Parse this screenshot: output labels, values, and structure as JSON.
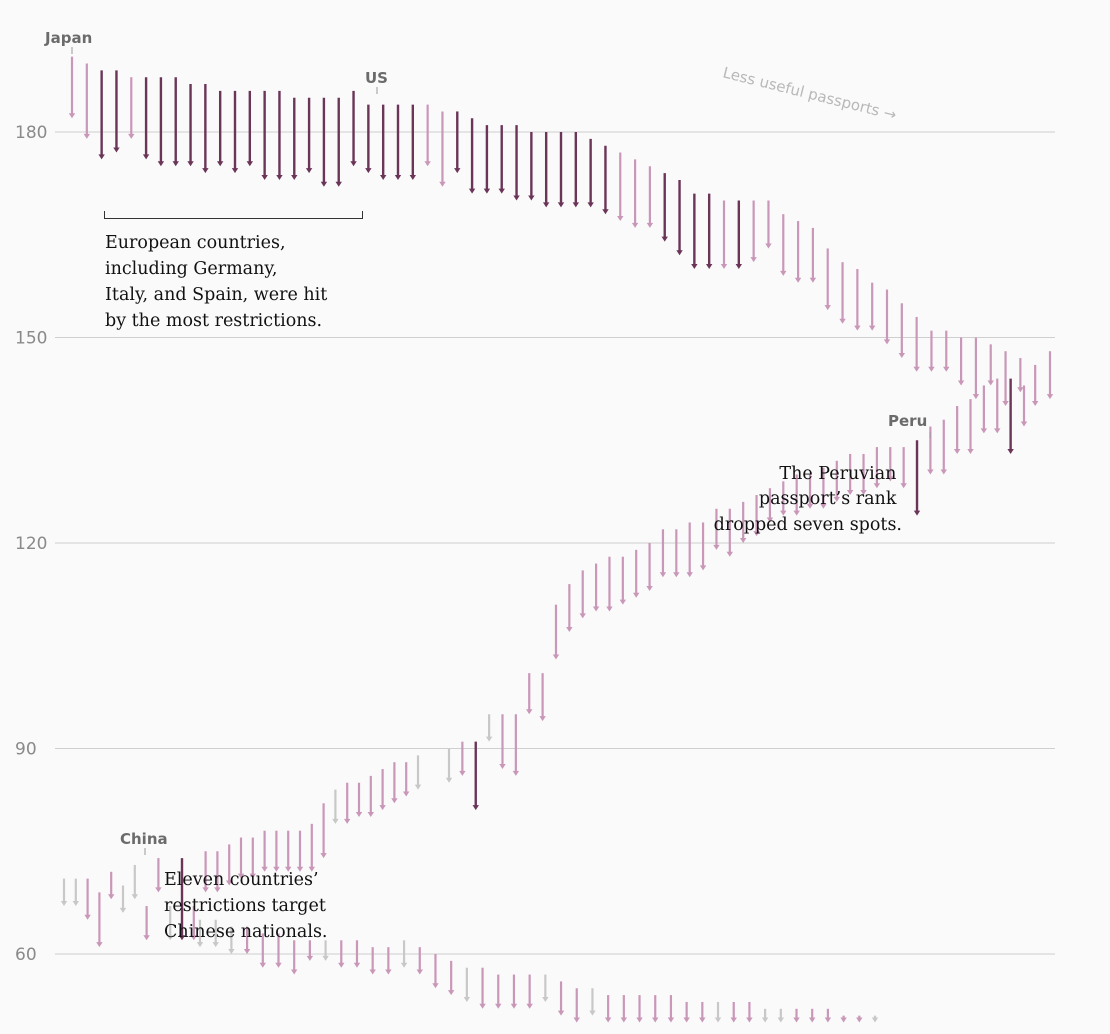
{
  "chart_data": {
    "type": "arrow-range",
    "title": "",
    "xlabel": "",
    "ylabel": "",
    "ylim": [
      50,
      193
    ],
    "yticks": [
      60,
      90,
      120,
      150,
      180
    ],
    "colors": {
      "light": "#c997b8",
      "dark": "#6b3558",
      "gray": "#c8c8c8",
      "grid": "#cfcfcf"
    },
    "upper_series": [
      {
        "from": 191,
        "to": 182,
        "style": "light"
      },
      {
        "from": 190,
        "to": 179,
        "style": "light"
      },
      {
        "from": 189,
        "to": 176,
        "style": "dark"
      },
      {
        "from": 189,
        "to": 177,
        "style": "dark"
      },
      {
        "from": 188,
        "to": 179,
        "style": "light"
      },
      {
        "from": 188,
        "to": 176,
        "style": "dark"
      },
      {
        "from": 188,
        "to": 175,
        "style": "dark"
      },
      {
        "from": 188,
        "to": 175,
        "style": "dark"
      },
      {
        "from": 187,
        "to": 175,
        "style": "dark"
      },
      {
        "from": 187,
        "to": 174,
        "style": "dark"
      },
      {
        "from": 186,
        "to": 175,
        "style": "dark"
      },
      {
        "from": 186,
        "to": 174,
        "style": "dark"
      },
      {
        "from": 186,
        "to": 175,
        "style": "dark"
      },
      {
        "from": 186,
        "to": 173,
        "style": "dark"
      },
      {
        "from": 186,
        "to": 173,
        "style": "dark"
      },
      {
        "from": 185,
        "to": 173,
        "style": "dark"
      },
      {
        "from": 185,
        "to": 174,
        "style": "dark"
      },
      {
        "from": 185,
        "to": 172,
        "style": "dark"
      },
      {
        "from": 185,
        "to": 172,
        "style": "dark"
      },
      {
        "from": 186,
        "to": 175,
        "style": "dark"
      },
      {
        "from": 184,
        "to": 174,
        "style": "dark"
      },
      {
        "from": 184,
        "to": 173,
        "style": "dark"
      },
      {
        "from": 184,
        "to": 173,
        "style": "dark"
      },
      {
        "from": 184,
        "to": 173,
        "style": "dark"
      },
      {
        "from": 184,
        "to": 175,
        "style": "light"
      },
      {
        "from": 183,
        "to": 172,
        "style": "light"
      },
      {
        "from": 183,
        "to": 174,
        "style": "dark"
      },
      {
        "from": 182,
        "to": 171,
        "style": "dark"
      },
      {
        "from": 181,
        "to": 171,
        "style": "dark"
      },
      {
        "from": 181,
        "to": 171,
        "style": "dark"
      },
      {
        "from": 181,
        "to": 170,
        "style": "dark"
      },
      {
        "from": 180,
        "to": 170,
        "style": "dark"
      },
      {
        "from": 180,
        "to": 169,
        "style": "dark"
      },
      {
        "from": 180,
        "to": 169,
        "style": "dark"
      },
      {
        "from": 180,
        "to": 169,
        "style": "dark"
      },
      {
        "from": 179,
        "to": 169,
        "style": "dark"
      },
      {
        "from": 178,
        "to": 168,
        "style": "dark"
      },
      {
        "from": 177,
        "to": 167,
        "style": "light"
      },
      {
        "from": 176,
        "to": 166,
        "style": "light"
      },
      {
        "from": 175,
        "to": 166,
        "style": "light"
      },
      {
        "from": 174,
        "to": 164,
        "style": "dark"
      },
      {
        "from": 173,
        "to": 162,
        "style": "dark"
      },
      {
        "from": 171,
        "to": 160,
        "style": "dark"
      },
      {
        "from": 171,
        "to": 160,
        "style": "dark"
      },
      {
        "from": 170,
        "to": 160,
        "style": "light"
      },
      {
        "from": 170,
        "to": 160,
        "style": "dark"
      },
      {
        "from": 170,
        "to": 161,
        "style": "light"
      },
      {
        "from": 170,
        "to": 163,
        "style": "light"
      },
      {
        "from": 168,
        "to": 159,
        "style": "light"
      },
      {
        "from": 167,
        "to": 158,
        "style": "light"
      },
      {
        "from": 166,
        "to": 158,
        "style": "light"
      },
      {
        "from": 163,
        "to": 154,
        "style": "light"
      },
      {
        "from": 161,
        "to": 152,
        "style": "light"
      },
      {
        "from": 160,
        "to": 151,
        "style": "light"
      },
      {
        "from": 158,
        "to": 151,
        "style": "light"
      },
      {
        "from": 157,
        "to": 149,
        "style": "light"
      },
      {
        "from": 155,
        "to": 147,
        "style": "light"
      },
      {
        "from": 153,
        "to": 145,
        "style": "light"
      },
      {
        "from": 151,
        "to": 145,
        "style": "light"
      },
      {
        "from": 151,
        "to": 145,
        "style": "light"
      },
      {
        "from": 150,
        "to": 143,
        "style": "light"
      },
      {
        "from": 150,
        "to": 141,
        "style": "light"
      },
      {
        "from": 149,
        "to": 143,
        "style": "light"
      },
      {
        "from": 148,
        "to": 140,
        "style": "light"
      },
      {
        "from": 147,
        "to": 142,
        "style": "light"
      },
      {
        "from": 146,
        "to": 140,
        "style": "light"
      },
      {
        "from": 148,
        "to": 141,
        "style": "light"
      }
    ],
    "middle_series": [
      {
        "from": 90,
        "to": 85,
        "style": "gray"
      },
      {
        "from": 91,
        "to": 86,
        "style": "light"
      },
      {
        "from": 91,
        "to": 81,
        "style": "dark"
      },
      {
        "from": 95,
        "to": 91,
        "style": "gray"
      },
      {
        "from": 95,
        "to": 87,
        "style": "light"
      },
      {
        "from": 95,
        "to": 86,
        "style": "light"
      },
      {
        "from": 101,
        "to": 95,
        "style": "light"
      },
      {
        "from": 101,
        "to": 94,
        "style": "light"
      },
      {
        "from": 111,
        "to": 103,
        "style": "light"
      },
      {
        "from": 114,
        "to": 107,
        "style": "light"
      },
      {
        "from": 116,
        "to": 109,
        "style": "light"
      },
      {
        "from": 117,
        "to": 110,
        "style": "light"
      },
      {
        "from": 118,
        "to": 110,
        "style": "light"
      },
      {
        "from": 118,
        "to": 111,
        "style": "light"
      },
      {
        "from": 119,
        "to": 112,
        "style": "light"
      },
      {
        "from": 120,
        "to": 113,
        "style": "light"
      },
      {
        "from": 122,
        "to": 115,
        "style": "light"
      },
      {
        "from": 122,
        "to": 115,
        "style": "light"
      },
      {
        "from": 123,
        "to": 115,
        "style": "light"
      },
      {
        "from": 123,
        "to": 116,
        "style": "light"
      },
      {
        "from": 125,
        "to": 119,
        "style": "light"
      },
      {
        "from": 125,
        "to": 118,
        "style": "light"
      },
      {
        "from": 126,
        "to": 120,
        "style": "light"
      },
      {
        "from": 127,
        "to": 121,
        "style": "light"
      },
      {
        "from": 128,
        "to": 123,
        "style": "light"
      },
      {
        "from": 129,
        "to": 124,
        "style": "light"
      },
      {
        "from": 130,
        "to": 124,
        "style": "light"
      },
      {
        "from": 130,
        "to": 125,
        "style": "light"
      },
      {
        "from": 131,
        "to": 125,
        "style": "light"
      },
      {
        "from": 132,
        "to": 126,
        "style": "light"
      },
      {
        "from": 133,
        "to": 127,
        "style": "light"
      },
      {
        "from": 133,
        "to": 127,
        "style": "light"
      },
      {
        "from": 134,
        "to": 128,
        "style": "light"
      },
      {
        "from": 134,
        "to": 129,
        "style": "light"
      },
      {
        "from": 134,
        "to": 128,
        "style": "light"
      },
      {
        "from": 135,
        "to": 124,
        "style": "dark"
      },
      {
        "from": 137,
        "to": 130,
        "style": "light"
      },
      {
        "from": 138,
        "to": 130,
        "style": "light"
      },
      {
        "from": 140,
        "to": 133,
        "style": "light"
      },
      {
        "from": 141,
        "to": 133,
        "style": "light"
      },
      {
        "from": 143,
        "to": 136,
        "style": "light"
      },
      {
        "from": 144,
        "to": 136,
        "style": "light"
      },
      {
        "from": 144,
        "to": 133,
        "style": "dark"
      },
      {
        "from": 143,
        "to": 137,
        "style": "light"
      }
    ],
    "lower_series": [
      {
        "from": 71,
        "to": 67,
        "style": "gray"
      },
      {
        "from": 71,
        "to": 67,
        "style": "gray"
      },
      {
        "from": 71,
        "to": 65,
        "style": "light"
      },
      {
        "from": 69,
        "to": 61,
        "style": "light"
      },
      {
        "from": 72,
        "to": 68,
        "style": "light"
      },
      {
        "from": 70,
        "to": 66,
        "style": "gray"
      },
      {
        "from": 73,
        "to": 68,
        "style": "gray"
      },
      {
        "from": 67,
        "to": 62,
        "style": "light"
      },
      {
        "from": 74,
        "to": 69,
        "style": "light"
      },
      {
        "from": 67,
        "to": 62,
        "style": "gray"
      },
      {
        "from": 74,
        "to": 62,
        "style": "dark"
      },
      {
        "from": 67,
        "to": 62,
        "style": "light"
      },
      {
        "from": 75,
        "to": 69,
        "style": "light"
      },
      {
        "from": 75,
        "to": 69,
        "style": "light"
      },
      {
        "from": 76,
        "to": 70,
        "style": "light"
      },
      {
        "from": 77,
        "to": 71,
        "style": "light"
      },
      {
        "from": 77,
        "to": 71,
        "style": "light"
      },
      {
        "from": 78,
        "to": 72,
        "style": "light"
      },
      {
        "from": 78,
        "to": 72,
        "style": "light"
      },
      {
        "from": 78,
        "to": 72,
        "style": "light"
      },
      {
        "from": 78,
        "to": 72,
        "style": "light"
      },
      {
        "from": 79,
        "to": 72,
        "style": "light"
      },
      {
        "from": 82,
        "to": 74,
        "style": "light"
      },
      {
        "from": 84,
        "to": 79,
        "style": "gray"
      },
      {
        "from": 85,
        "to": 79,
        "style": "light"
      },
      {
        "from": 85,
        "to": 80,
        "style": "light"
      },
      {
        "from": 86,
        "to": 80,
        "style": "light"
      },
      {
        "from": 87,
        "to": 81,
        "style": "light"
      },
      {
        "from": 88,
        "to": 82,
        "style": "light"
      },
      {
        "from": 88,
        "to": 83,
        "style": "light"
      },
      {
        "from": 89,
        "to": 84,
        "style": "gray"
      },
      {
        "from": 65,
        "to": 61,
        "style": "gray"
      },
      {
        "from": 65,
        "to": 61,
        "style": "gray"
      },
      {
        "from": 64,
        "to": 60,
        "style": "gray"
      },
      {
        "from": 64,
        "to": 60,
        "style": "light"
      },
      {
        "from": 63,
        "to": 58,
        "style": "light"
      },
      {
        "from": 63,
        "to": 58,
        "style": "light"
      },
      {
        "from": 62,
        "to": 57,
        "style": "light"
      },
      {
        "from": 62,
        "to": 59,
        "style": "light"
      },
      {
        "from": 62,
        "to": 59,
        "style": "gray"
      },
      {
        "from": 62,
        "to": 58,
        "style": "light"
      },
      {
        "from": 62,
        "to": 58,
        "style": "light"
      },
      {
        "from": 61,
        "to": 57,
        "style": "light"
      },
      {
        "from": 61,
        "to": 57,
        "style": "light"
      },
      {
        "from": 62,
        "to": 58,
        "style": "gray"
      },
      {
        "from": 61,
        "to": 57,
        "style": "light"
      },
      {
        "from": 60,
        "to": 55,
        "style": "light"
      },
      {
        "from": 59,
        "to": 54,
        "style": "light"
      },
      {
        "from": 58,
        "to": 53,
        "style": "gray"
      },
      {
        "from": 58,
        "to": 52,
        "style": "light"
      },
      {
        "from": 57,
        "to": 52,
        "style": "light"
      },
      {
        "from": 57,
        "to": 52,
        "style": "light"
      },
      {
        "from": 57,
        "to": 52,
        "style": "light"
      },
      {
        "from": 57,
        "to": 53,
        "style": "gray"
      },
      {
        "from": 56,
        "to": 51,
        "style": "light"
      },
      {
        "from": 55,
        "to": 50,
        "style": "light"
      },
      {
        "from": 55,
        "to": 51,
        "style": "gray"
      },
      {
        "from": 54,
        "to": 50,
        "style": "light"
      },
      {
        "from": 54,
        "to": 50,
        "style": "light"
      },
      {
        "from": 54,
        "to": 50,
        "style": "light"
      },
      {
        "from": 54,
        "to": 50,
        "style": "light"
      },
      {
        "from": 54,
        "to": 50,
        "style": "light"
      },
      {
        "from": 53,
        "to": 50,
        "style": "light"
      },
      {
        "from": 53,
        "to": 50,
        "style": "light"
      },
      {
        "from": 53,
        "to": 50,
        "style": "gray"
      },
      {
        "from": 53,
        "to": 50,
        "style": "light"
      },
      {
        "from": 53,
        "to": 50,
        "style": "light"
      },
      {
        "from": 52,
        "to": 50,
        "style": "gray"
      },
      {
        "from": 52,
        "to": 50,
        "style": "gray"
      },
      {
        "from": 52,
        "to": 50,
        "style": "light"
      },
      {
        "from": 52,
        "to": 50,
        "style": "light"
      },
      {
        "from": 52,
        "to": 50,
        "style": "light"
      },
      {
        "from": 51,
        "to": 50,
        "style": "light"
      },
      {
        "from": 51,
        "to": 50,
        "style": "light"
      },
      {
        "from": 51,
        "to": 50,
        "style": "gray"
      }
    ],
    "country_labels": {
      "japan": "Japan",
      "us": "US",
      "peru": "Peru",
      "china": "China"
    },
    "annotations": {
      "europe": [
        "European countries,",
        "including Germany,",
        "Italy, and Spain, were hit",
        "by the most restrictions."
      ],
      "peru": [
        "The Peruvian",
        "passport’s rank",
        "dropped seven spots."
      ],
      "china": [
        "Eleven countries’",
        "restrictions target",
        "Chinese nationals."
      ],
      "hint": "Less useful passports →"
    }
  }
}
